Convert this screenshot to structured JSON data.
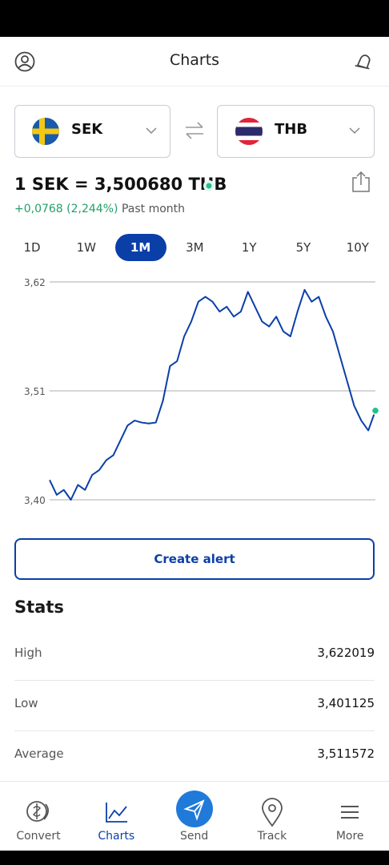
{
  "header": {
    "title": "Charts"
  },
  "converter": {
    "from": "SEK",
    "to": "THB",
    "rate": "1 SEK = 3,500680 THB",
    "change": "+0,0768 (2,244%)",
    "period": "Past month"
  },
  "ranges": {
    "items": [
      "1D",
      "1W",
      "1M",
      "3M",
      "1Y",
      "5Y",
      "10Y"
    ],
    "selected": "1M"
  },
  "chart_data": {
    "type": "line",
    "color": "#0b3fa8",
    "marker_color": "#1fc28a",
    "grid": true,
    "ylim": [
      3.4,
      3.62
    ],
    "yticks": [
      {
        "value": 3.62,
        "label": "3,62"
      },
      {
        "value": 3.51,
        "label": "3,51"
      },
      {
        "value": 3.4,
        "label": "3,40"
      }
    ],
    "values": [
      3.42,
      3.405,
      3.41,
      3.4,
      3.415,
      3.41,
      3.425,
      3.43,
      3.44,
      3.445,
      3.46,
      3.475,
      3.48,
      3.478,
      3.477,
      3.478,
      3.5,
      3.535,
      3.54,
      3.565,
      3.58,
      3.6,
      3.605,
      3.6,
      3.59,
      3.595,
      3.585,
      3.59,
      3.61,
      3.595,
      3.58,
      3.575,
      3.585,
      3.57,
      3.565,
      3.59,
      3.612,
      3.6,
      3.605,
      3.585,
      3.57,
      3.545,
      3.52,
      3.495,
      3.48,
      3.47,
      3.49
    ]
  },
  "alert_button": "Create alert",
  "stats": {
    "title": "Stats",
    "rows": [
      [
        "High",
        "3,622019"
      ],
      [
        "Low",
        "3,401125"
      ],
      [
        "Average",
        "3,511572"
      ]
    ]
  },
  "nav": {
    "items": [
      "Convert",
      "Charts",
      "Send",
      "Track",
      "More"
    ],
    "active": "Charts"
  }
}
